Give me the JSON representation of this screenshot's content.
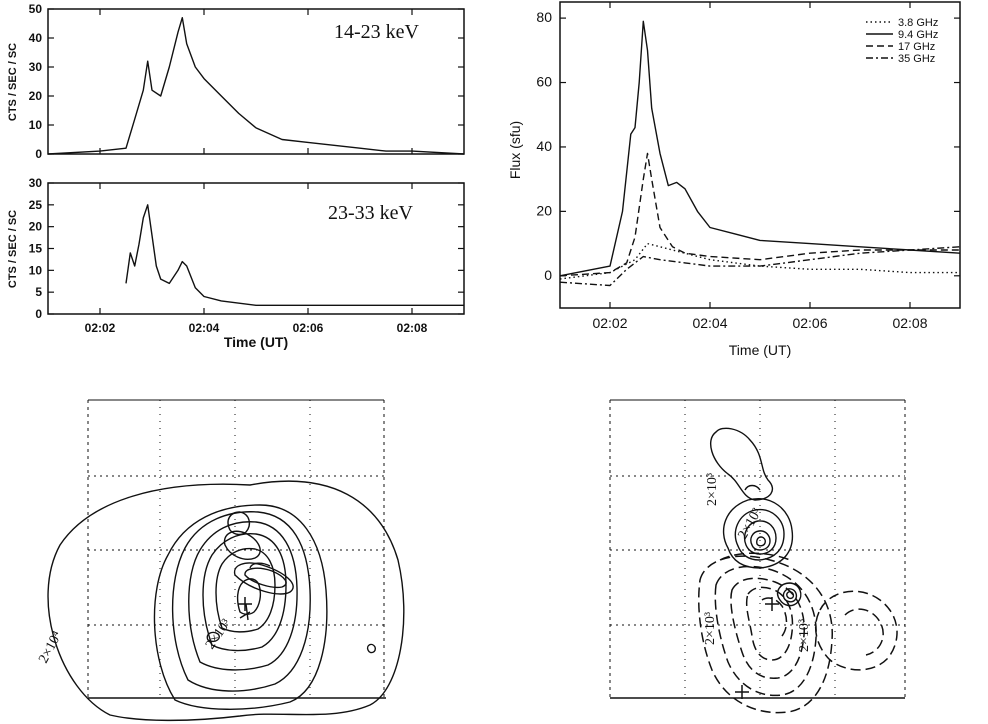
{
  "chart_data": [
    {
      "type": "line",
      "panel": "hxr-low",
      "annotation": "14-23 keV",
      "ylabel": "CTS / SEC / SC",
      "xlabel": "",
      "xlim": [
        "02:01",
        "02:09"
      ],
      "ylim": [
        0,
        50
      ],
      "yticks": [
        "0",
        "10",
        "20",
        "30",
        "40",
        "50"
      ],
      "xticks": [],
      "series": [
        {
          "style": "solid",
          "x": [
            "02:01:00",
            "02:02:00",
            "02:02:30",
            "02:02:40",
            "02:02:50",
            "02:02:55",
            "02:03:00",
            "02:03:10",
            "02:03:20",
            "02:03:30",
            "02:03:35",
            "02:03:40",
            "02:03:50",
            "02:04:00",
            "02:04:20",
            "02:04:40",
            "02:05:00",
            "02:05:30",
            "02:06:00",
            "02:06:30",
            "02:07:00",
            "02:07:30",
            "02:08:00",
            "02:09:00"
          ],
          "y": [
            0,
            1,
            2,
            12,
            22,
            32,
            22,
            20,
            30,
            42,
            47,
            38,
            30,
            26,
            20,
            14,
            9,
            5,
            4,
            3,
            2,
            1,
            1,
            0
          ]
        }
      ]
    },
    {
      "type": "line",
      "panel": "hxr-high",
      "annotation": "23-33 keV",
      "ylabel": "CTS / SEC / SC",
      "xlabel": "Time (UT)",
      "xlim": [
        "02:01",
        "02:09"
      ],
      "ylim": [
        0,
        30
      ],
      "yticks": [
        "0",
        "5",
        "10",
        "15",
        "20",
        "25",
        "30"
      ],
      "xticks": [
        "02:02",
        "02:04",
        "02:06",
        "02:08"
      ],
      "series": [
        {
          "style": "solid",
          "x": [
            "02:02:30",
            "02:02:35",
            "02:02:40",
            "02:02:45",
            "02:02:50",
            "02:02:55",
            "02:03:00",
            "02:03:05",
            "02:03:10",
            "02:03:20",
            "02:03:30",
            "02:03:35",
            "02:03:40",
            "02:03:50",
            "02:04:00",
            "02:04:20",
            "02:05:00",
            "02:06:00",
            "02:07:00",
            "02:08:00",
            "02:09:00"
          ],
          "y": [
            7,
            14,
            11,
            16,
            22,
            25,
            18,
            11,
            8,
            7,
            10,
            12,
            11,
            6,
            4,
            3,
            2,
            2,
            2,
            2,
            2
          ]
        }
      ]
    },
    {
      "type": "line",
      "panel": "radio",
      "annotation": "",
      "ylabel": "Flux (sfu)",
      "xlabel": "Time (UT)",
      "xlim": [
        "02:01",
        "02:09"
      ],
      "ylim": [
        -10,
        85
      ],
      "yticks": [
        "0",
        "20",
        "40",
        "60",
        "80"
      ],
      "xticks": [
        "02:02",
        "02:04",
        "02:06",
        "02:08"
      ],
      "legend": "top-right",
      "series": [
        {
          "name": "3.8 GHz",
          "style": "dotted",
          "x": [
            "02:01:00",
            "02:02:00",
            "02:02:30",
            "02:02:45",
            "02:03:00",
            "02:03:30",
            "02:04:00",
            "02:05:00",
            "02:06:00",
            "02:07:00",
            "02:08:00",
            "02:09:00"
          ],
          "y": [
            -1,
            1,
            5,
            10,
            9,
            7,
            5,
            3,
            2,
            2,
            1,
            1
          ]
        },
        {
          "name": "9.4 GHz",
          "style": "solid",
          "x": [
            "02:01:00",
            "02:02:00",
            "02:02:15",
            "02:02:25",
            "02:02:30",
            "02:02:35",
            "02:02:40",
            "02:02:45",
            "02:02:50",
            "02:03:00",
            "02:03:10",
            "02:03:20",
            "02:03:30",
            "02:03:45",
            "02:04:00",
            "02:04:30",
            "02:05:00",
            "02:06:00",
            "02:07:00",
            "02:08:00",
            "02:09:00"
          ],
          "y": [
            0,
            3,
            20,
            44,
            46,
            60,
            79,
            70,
            52,
            38,
            28,
            29,
            27,
            20,
            15,
            13,
            11,
            10,
            9,
            8,
            7
          ]
        },
        {
          "name": "17 GHz",
          "style": "dashed",
          "x": [
            "02:01:00",
            "02:02:00",
            "02:02:20",
            "02:02:30",
            "02:02:40",
            "02:02:45",
            "02:02:50",
            "02:03:00",
            "02:03:15",
            "02:03:30",
            "02:04:00",
            "02:05:00",
            "02:06:00",
            "02:07:00",
            "02:08:00",
            "02:09:00"
          ],
          "y": [
            0,
            1,
            4,
            12,
            30,
            38,
            30,
            15,
            9,
            7,
            6,
            5,
            7,
            8,
            8,
            8
          ]
        },
        {
          "name": "35 GHz",
          "style": "dashdot",
          "x": [
            "02:01:00",
            "02:02:00",
            "02:02:20",
            "02:02:40",
            "02:03:00",
            "02:03:30",
            "02:04:00",
            "02:05:00",
            "02:06:00",
            "02:07:00",
            "02:08:00",
            "02:09:00"
          ],
          "y": [
            -2,
            -3,
            2,
            6,
            5,
            4,
            3,
            3,
            5,
            7,
            8,
            9
          ]
        }
      ]
    }
  ],
  "images": {
    "left_labels": [
      "2×10⁴",
      "2×10³"
    ],
    "right_labels": [
      "2×10³",
      "2×10³",
      "2×10³",
      "2×10³"
    ]
  }
}
